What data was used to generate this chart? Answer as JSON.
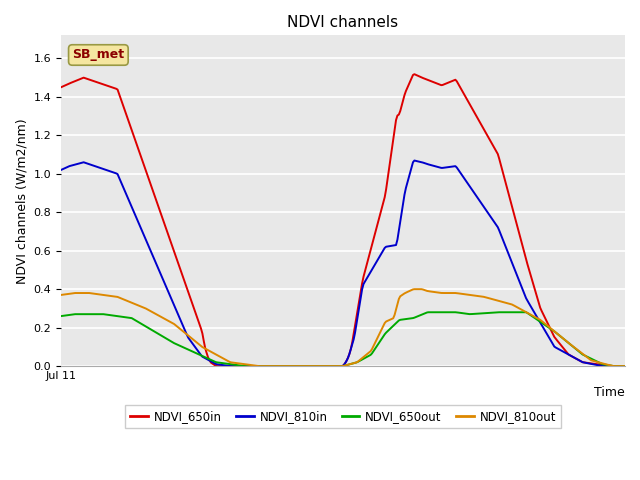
{
  "title": "NDVI channels",
  "xlabel": "Time",
  "ylabel": "NDVI channels (W/m2/nm)",
  "ylim": [
    0.0,
    1.72
  ],
  "yticks": [
    0.0,
    0.2,
    0.4,
    0.6,
    0.8,
    1.0,
    1.2,
    1.4,
    1.6
  ],
  "annotation_text": "SB_met",
  "bg_color": "#e8e8e8",
  "fig_color": "#ffffff",
  "legend_labels": [
    "NDVI_650in",
    "NDVI_810in",
    "NDVI_650out",
    "NDVI_810out"
  ],
  "line_colors": [
    "#dd0000",
    "#0000cc",
    "#00aa00",
    "#dd8800"
  ],
  "red": {
    "x": [
      0,
      3,
      8,
      20,
      50,
      51,
      52,
      53,
      54,
      55,
      100,
      101,
      102,
      103,
      107,
      115,
      119,
      120,
      122,
      125,
      128,
      135,
      140,
      155,
      165,
      170,
      175,
      180,
      185,
      190,
      195,
      200
    ],
    "y": [
      1.45,
      1.47,
      1.5,
      1.44,
      0.18,
      0.1,
      0.05,
      0.02,
      0.01,
      0.0,
      0.0,
      0.02,
      0.05,
      0.1,
      0.45,
      0.89,
      1.3,
      1.31,
      1.42,
      1.52,
      1.5,
      1.46,
      1.49,
      1.1,
      0.55,
      0.3,
      0.15,
      0.06,
      0.02,
      0.01,
      0.0,
      0.0
    ]
  },
  "blue": {
    "x": [
      0,
      3,
      8,
      20,
      45,
      50,
      55,
      60,
      100,
      101,
      102,
      104,
      107,
      115,
      119,
      122,
      125,
      128,
      130,
      135,
      140,
      155,
      165,
      175,
      185,
      192,
      195,
      200
    ],
    "y": [
      1.02,
      1.04,
      1.06,
      1.0,
      0.15,
      0.05,
      0.01,
      0.0,
      0.0,
      0.02,
      0.05,
      0.15,
      0.42,
      0.62,
      0.63,
      0.91,
      1.07,
      1.06,
      1.05,
      1.03,
      1.04,
      0.72,
      0.35,
      0.1,
      0.02,
      0.0,
      0.0,
      0.0
    ]
  },
  "green": {
    "x": [
      0,
      5,
      15,
      25,
      40,
      55,
      65,
      70,
      100,
      105,
      110,
      115,
      120,
      125,
      130,
      135,
      140,
      145,
      155,
      165,
      175,
      185,
      192,
      196,
      200
    ],
    "y": [
      0.26,
      0.27,
      0.27,
      0.25,
      0.12,
      0.02,
      0.0,
      0.0,
      0.0,
      0.02,
      0.06,
      0.17,
      0.24,
      0.25,
      0.28,
      0.28,
      0.28,
      0.27,
      0.28,
      0.28,
      0.18,
      0.06,
      0.01,
      0.0,
      0.0
    ]
  },
  "orange": {
    "x": [
      0,
      5,
      10,
      20,
      30,
      40,
      50,
      60,
      65,
      70,
      100,
      105,
      110,
      115,
      118,
      120,
      122,
      125,
      128,
      130,
      135,
      140,
      150,
      160,
      170,
      180,
      188,
      193,
      196,
      200
    ],
    "y": [
      0.37,
      0.38,
      0.38,
      0.36,
      0.3,
      0.22,
      0.1,
      0.02,
      0.01,
      0.0,
      0.0,
      0.02,
      0.08,
      0.23,
      0.25,
      0.36,
      0.38,
      0.4,
      0.4,
      0.39,
      0.38,
      0.38,
      0.36,
      0.32,
      0.24,
      0.12,
      0.03,
      0.01,
      0.0,
      0.0
    ]
  }
}
